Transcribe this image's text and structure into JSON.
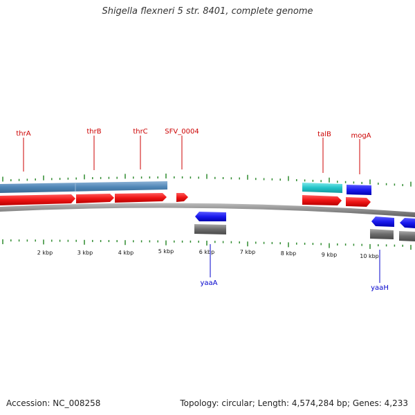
{
  "title": "Shigella flexneri 5 str. 8401, complete genome",
  "footer": {
    "accession": "Accession: NC_008258",
    "summary": "Topology: circular; Length: 4,574,284 bp; Genes: 4,233"
  },
  "colors": {
    "forward_gene": "#e21212",
    "reverse_gene": "#1a1aee",
    "operon_bar": "#4f86b6",
    "cyan_bar": "#22c4c8",
    "gray_bar": "#6c6c6c",
    "backbone": "#8c8c8c",
    "ticks": "#2e8a2e",
    "forward_label": "#cc0000",
    "reverse_label": "#0000cc"
  },
  "scale": {
    "unit": "kbp",
    "ticks": [
      {
        "kbp": 2,
        "label": "2 kbp"
      },
      {
        "kbp": 3,
        "label": "3 kbp"
      },
      {
        "kbp": 4,
        "label": "4 kbp"
      },
      {
        "kbp": 5,
        "label": "5 kbp"
      },
      {
        "kbp": 6,
        "label": "6 kbp"
      },
      {
        "kbp": 7,
        "label": "7 kbp"
      },
      {
        "kbp": 8,
        "label": "8 kbp"
      },
      {
        "kbp": 9,
        "label": "9 kbp"
      },
      {
        "kbp": 10,
        "label": "10 kbp"
      }
    ]
  },
  "gene_labels": {
    "forward": [
      "thrA",
      "thrB",
      "thrC",
      "SFV_0004",
      "talB",
      "mogA"
    ],
    "reverse": [
      "yaaA",
      "yaaH"
    ]
  }
}
